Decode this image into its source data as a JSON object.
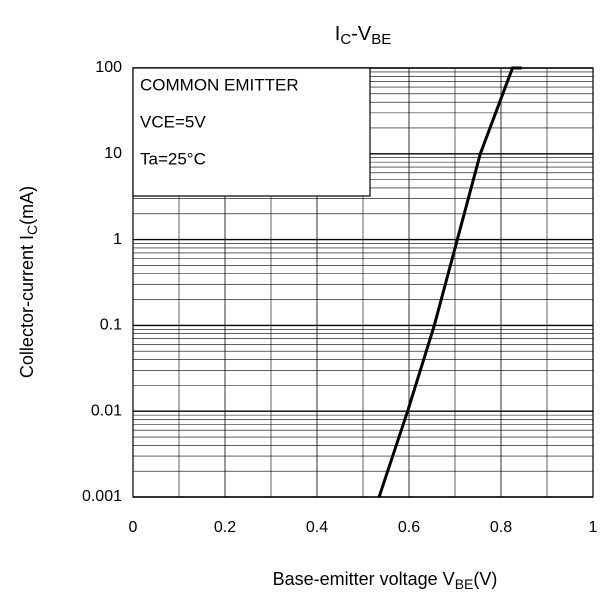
{
  "chart_data": {
    "type": "line",
    "title": [
      "I",
      "C",
      "-V",
      "BE"
    ],
    "xlabel": [
      "Base-emitter voltage V",
      "BE",
      "(V)"
    ],
    "ylabel": [
      "Collector-current I",
      "C",
      "(mA)"
    ],
    "annotations": [
      "COMMON EMITTER",
      "VCE=5V",
      "Ta=25°C"
    ],
    "xlim": [
      0,
      1
    ],
    "xticks": [
      0,
      0.2,
      0.4,
      0.6,
      0.8,
      1
    ],
    "ylim": [
      0.001,
      100
    ],
    "yticks": [
      0.001,
      0.01,
      0.1,
      1,
      10,
      100
    ],
    "ylog": true,
    "grid": true,
    "series": [
      {
        "color": "#000000",
        "x": [
          0.535,
          0.597,
          0.655,
          0.705,
          0.755,
          0.825,
          0.845
        ],
        "values": [
          0.001,
          0.01,
          0.1,
          1,
          10,
          100,
          100
        ]
      }
    ]
  }
}
